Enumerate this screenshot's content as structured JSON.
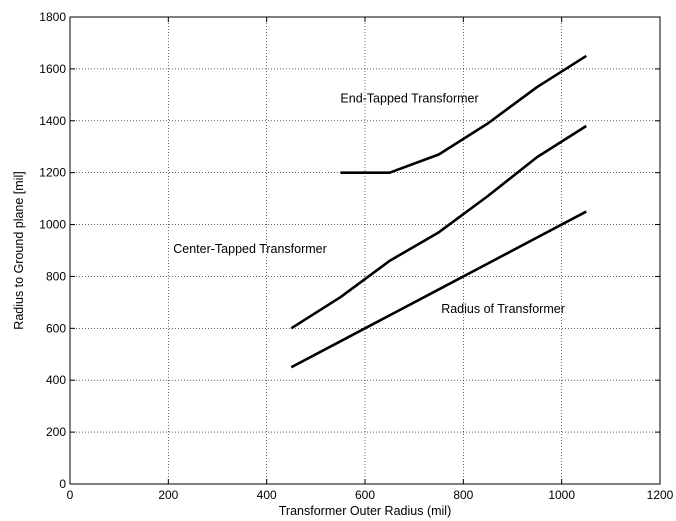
{
  "chart_data": {
    "type": "line",
    "title": "",
    "xlabel": "Transformer Outer Radius (mil)",
    "ylabel": "Radius to Ground plane [mil]",
    "xlim": [
      0,
      1200
    ],
    "ylim": [
      0,
      1800
    ],
    "xticks": [
      0,
      200,
      400,
      600,
      800,
      1000,
      1200
    ],
    "yticks": [
      0,
      200,
      400,
      600,
      800,
      1000,
      1200,
      1400,
      1600,
      1800
    ],
    "grid": true,
    "line_color": "#000000",
    "series": [
      {
        "x": [
          550,
          650,
          750,
          850,
          950,
          1050
        ],
        "y": [
          1200,
          1200,
          1270,
          1390,
          1530,
          1650
        ]
      },
      {
        "x": [
          450,
          550,
          650,
          750,
          850,
          950,
          1050
        ],
        "y": [
          600,
          720,
          860,
          970,
          1110,
          1260,
          1380
        ]
      },
      {
        "x": [
          450,
          550,
          650,
          750,
          850,
          950,
          1050
        ],
        "y": [
          450,
          550,
          650,
          750,
          850,
          950,
          1050
        ]
      }
    ],
    "annotations": [
      {
        "text": "End-Tapped Transformer",
        "x": 550,
        "y": 1470
      },
      {
        "text": "Center-Tapped Transformer",
        "x": 210,
        "y": 890
      },
      {
        "text": "Radius of Transformer",
        "x": 755,
        "y": 660
      }
    ]
  }
}
